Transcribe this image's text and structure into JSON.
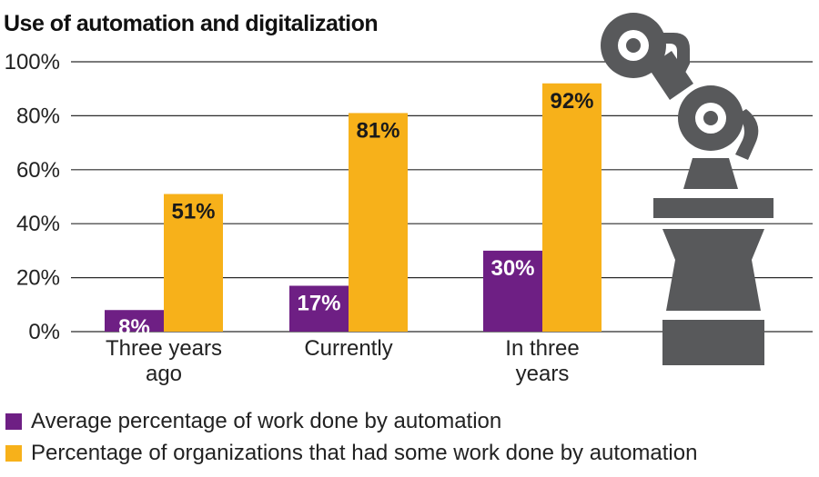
{
  "chart_data": {
    "type": "bar",
    "title": "Use of automation and digitalization",
    "categories": [
      [
        "Three years",
        "ago"
      ],
      [
        "Currently"
      ],
      [
        "In three",
        "years"
      ]
    ],
    "series": [
      {
        "name": "Average percentage of work done by automation",
        "values": [
          8,
          17,
          30
        ],
        "labels": [
          "8%",
          "17%",
          "30%"
        ],
        "color": "#6e1f84"
      },
      {
        "name": "Percentage of organizations that had some work done by automation",
        "values": [
          51,
          81,
          92
        ],
        "labels": [
          "51%",
          "81%",
          "92%"
        ],
        "color": "#f7b11a"
      }
    ],
    "ylim": [
      0,
      100
    ],
    "yticks": [
      {
        "value": 0,
        "label": "0%"
      },
      {
        "value": 20,
        "label": "20%"
      },
      {
        "value": 40,
        "label": "40%"
      },
      {
        "value": 60,
        "label": "60%"
      },
      {
        "value": 80,
        "label": "80%"
      },
      {
        "value": 100,
        "label": "100%"
      }
    ],
    "grid": true,
    "legend_position": "bottom-left",
    "label_color": "#ffffff",
    "label_color_high": "#1a1a1a"
  },
  "decoration": {
    "icon": "robot-arm-icon",
    "color": "#58595b"
  }
}
